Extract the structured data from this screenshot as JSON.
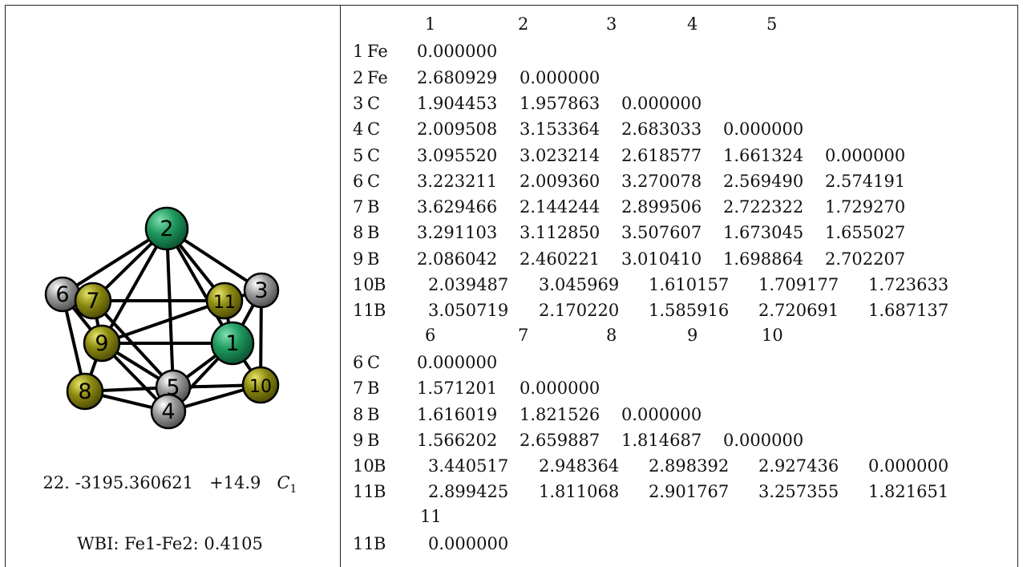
{
  "molecule": {
    "atoms": [
      {
        "label": "2",
        "element": "Fe"
      },
      {
        "label": "6",
        "element": "C"
      },
      {
        "label": "7",
        "element": "B"
      },
      {
        "label": "11",
        "element": "B"
      },
      {
        "label": "3",
        "element": "C"
      },
      {
        "label": "9",
        "element": "B"
      },
      {
        "label": "1",
        "element": "Fe"
      },
      {
        "label": "8",
        "element": "B"
      },
      {
        "label": "5",
        "element": "C"
      },
      {
        "label": "10",
        "element": "B"
      },
      {
        "label": "4",
        "element": "C"
      }
    ],
    "colors": {
      "Fe": "#1f9a5e",
      "C": "#9a9a9a",
      "B": "#8c8a10"
    }
  },
  "energy_line": {
    "index": "22.",
    "energy": "-3195.360621",
    "relative": "+14.9",
    "symmetry": "C",
    "symmetry_sub": "1"
  },
  "wbi": "WBI: Fe1-Fe2: 0.4105",
  "matrix": {
    "block1": {
      "cols": [
        "1",
        "2",
        "3",
        "4",
        "5"
      ],
      "rows": [
        {
          "num": "1",
          "el": "Fe",
          "vals": [
            "0.000000"
          ]
        },
        {
          "num": "2",
          "el": "Fe",
          "vals": [
            "2.680929",
            "0.000000"
          ]
        },
        {
          "num": "3",
          "el": "C",
          "vals": [
            "1.904453",
            "1.957863",
            "0.000000"
          ]
        },
        {
          "num": "4",
          "el": "C",
          "vals": [
            "2.009508",
            "3.153364",
            "2.683033",
            "0.000000"
          ]
        },
        {
          "num": "5",
          "el": "C",
          "vals": [
            "3.095520",
            "3.023214",
            "2.618577",
            "1.661324",
            "0.000000"
          ]
        },
        {
          "num": "6",
          "el": "C",
          "vals": [
            "3.223211",
            "2.009360",
            "3.270078",
            "2.569490",
            "2.574191"
          ]
        },
        {
          "num": "7",
          "el": "B",
          "vals": [
            "3.629466",
            "2.144244",
            "2.899506",
            "2.722322",
            "1.729270"
          ]
        },
        {
          "num": "8",
          "el": "B",
          "vals": [
            "3.291103",
            "3.112850",
            "3.507607",
            "1.673045",
            "1.655027"
          ]
        },
        {
          "num": "9",
          "el": "B",
          "vals": [
            "2.086042",
            "2.460221",
            "3.010410",
            "1.698864",
            "2.702207"
          ]
        },
        {
          "num": "10",
          "el": "B",
          "vals": [
            "2.039487",
            "3.045969",
            "1.610157",
            "1.709177",
            "1.723633"
          ]
        },
        {
          "num": "11",
          "el": "B",
          "vals": [
            "3.050719",
            "2.170220",
            "1.585916",
            "2.720691",
            "1.687137"
          ]
        }
      ]
    },
    "block2": {
      "cols": [
        "6",
        "7",
        "8",
        "9",
        "10"
      ],
      "rows": [
        {
          "num": "6",
          "el": "C",
          "vals": [
            "0.000000"
          ]
        },
        {
          "num": "7",
          "el": "B",
          "vals": [
            "1.571201",
            "0.000000"
          ]
        },
        {
          "num": "8",
          "el": "B",
          "vals": [
            "1.616019",
            "1.821526",
            "0.000000"
          ]
        },
        {
          "num": "9",
          "el": "B",
          "vals": [
            "1.566202",
            "2.659887",
            "1.814687",
            "0.000000"
          ]
        },
        {
          "num": "10",
          "el": "B",
          "vals": [
            "3.440517",
            "2.948364",
            "2.898392",
            "2.927436",
            "0.000000"
          ]
        },
        {
          "num": "11",
          "el": "B",
          "vals": [
            "2.899425",
            "1.811068",
            "2.901767",
            "3.257355",
            "1.821651"
          ]
        }
      ]
    },
    "block3": {
      "cols": [
        "11"
      ],
      "rows": [
        {
          "num": "11",
          "el": "B",
          "vals": [
            "0.000000"
          ]
        }
      ]
    }
  }
}
